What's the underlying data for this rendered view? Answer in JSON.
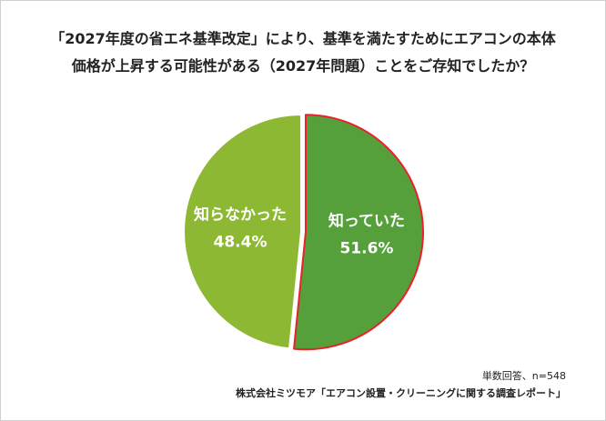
{
  "chart_data": {
    "type": "pie",
    "title_lines": [
      "「2027年度の省エネ基準改定」により、基準を満たすためにエアコンの本体",
      "価格が上昇する可能性がある（2027年問題）ことをご存知でしたか？"
    ],
    "slices": [
      {
        "label": "知っていた",
        "value": 51.6,
        "value_label": "51.6%",
        "color": "#55A03B",
        "outline": "#E8222A",
        "exploded": true
      },
      {
        "label": "知らなかった",
        "value": 48.4,
        "value_label": "48.4%",
        "color": "#8DB833",
        "outline": "#ffffff",
        "exploded": false
      }
    ]
  },
  "footer": {
    "note": "単数回答、n=548",
    "source": "株式会社ミツモア「エアコン設置・クリーニングに関する調査レポート」"
  }
}
